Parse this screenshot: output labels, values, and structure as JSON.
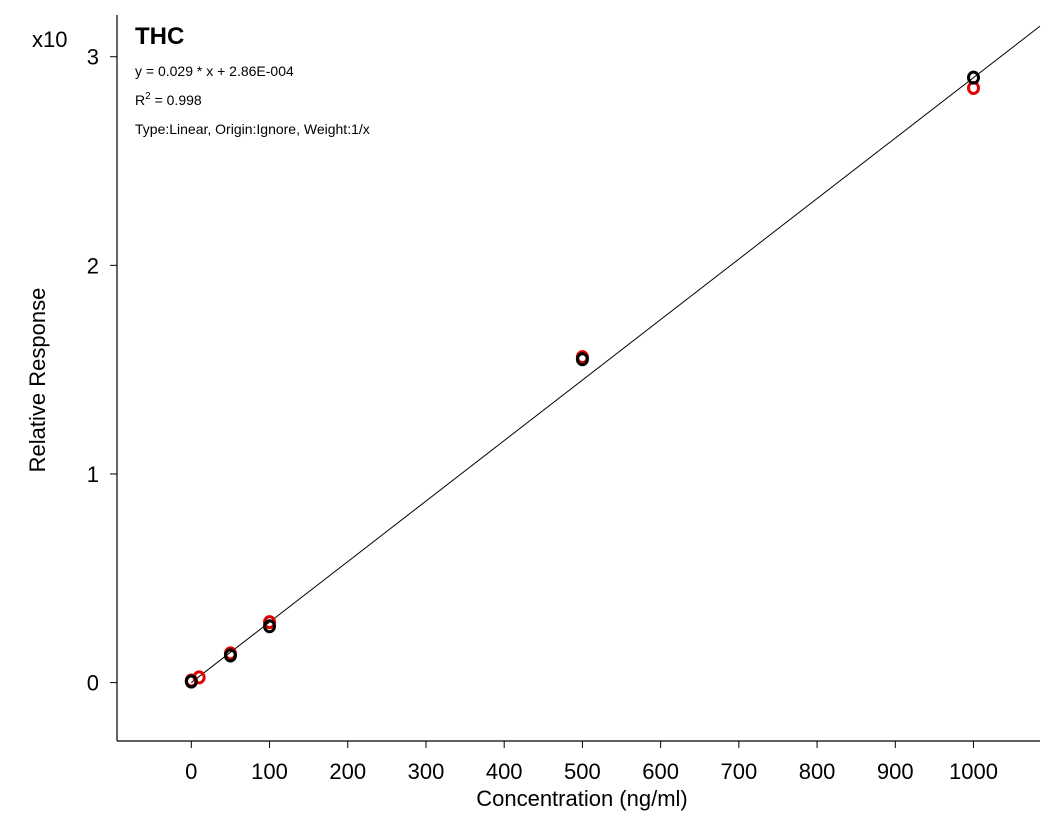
{
  "chart_data": {
    "type": "scatter",
    "title": "THC",
    "equation": "y = 0.029 * x  + 2.86E-004",
    "r2_prefix": "R",
    "r2_sup": "2",
    "r2_value": " = 0.998",
    "fit_info": "Type:Linear, Origin:Ignore, Weight:1/x",
    "y_multiplier": "x10",
    "xlabel": "Concentration (ng/ml)",
    "ylabel": "Relative Response",
    "xlim": [
      -95,
      1085
    ],
    "ylim": [
      -0.28,
      3.2
    ],
    "x_ticks": [
      0,
      100,
      200,
      300,
      400,
      500,
      600,
      700,
      800,
      900,
      1000
    ],
    "y_ticks": [
      0,
      1,
      2,
      3
    ],
    "fit_line": {
      "slope": 0.0029,
      "intercept": 2.86e-05,
      "x_range": [
        0,
        1085
      ]
    },
    "series": [
      {
        "color": "#e00000",
        "points": [
          [
            0,
            0.01
          ],
          [
            10,
            0.025
          ],
          [
            50,
            0.14
          ],
          [
            100,
            0.29
          ],
          [
            500,
            1.56
          ],
          [
            1000,
            2.85
          ]
        ]
      },
      {
        "color": "#000000",
        "points": [
          [
            0,
            0.005
          ],
          [
            50,
            0.13
          ],
          [
            100,
            0.27
          ],
          [
            500,
            1.55
          ],
          [
            1000,
            2.9
          ]
        ]
      }
    ]
  }
}
